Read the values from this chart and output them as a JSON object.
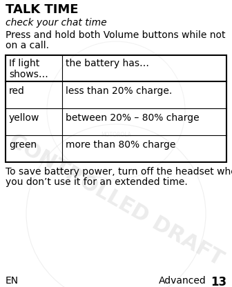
{
  "title": "TALK TIME",
  "subtitle": "check your chat time",
  "body_text1": "Press and hold both Volume buttons while not",
  "body_text2": "on a call.",
  "table_header": [
    "If light\nshows…",
    "the battery has…"
  ],
  "table_rows": [
    [
      "red",
      "less than 20% charge."
    ],
    [
      "yellow",
      "between 20% – 80% charge"
    ],
    [
      "green",
      "more than 80% charge"
    ]
  ],
  "footer_text1": "To save battery power, turn off the headset when",
  "footer_text2": "you don’t use it for an extended time.",
  "footer_left": "EN",
  "footer_right": "Advanced",
  "footer_page": "13",
  "bg_color": "#ffffff",
  "text_color": "#000000",
  "table_border_color": "#000000",
  "title_fontsize": 13,
  "subtitle_fontsize": 10,
  "body_fontsize": 10,
  "table_fontsize": 10,
  "footer_fontsize": 10,
  "watermark_color": "#e0e0e0"
}
